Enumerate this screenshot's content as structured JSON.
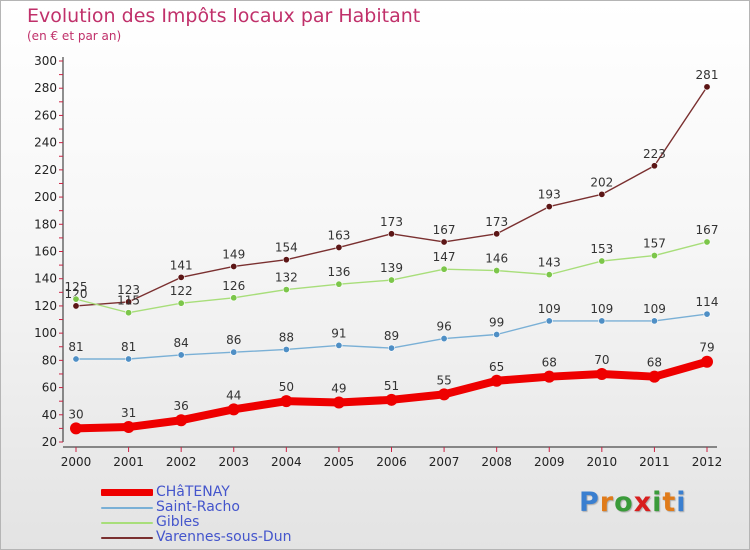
{
  "header": {
    "title": "Evolution des Impôts locaux par Habitant",
    "subtitle": "(en € et par an)"
  },
  "logo": {
    "letters": [
      "P",
      "r",
      "o",
      "x",
      "i",
      "t",
      "i"
    ],
    "colors": [
      "#3a7fd0",
      "#e07b1a",
      "#3a9b3a",
      "#d81e1e",
      "#3a9b3a",
      "#e07b1a",
      "#3a7fd0"
    ]
  },
  "chart_data": {
    "type": "line",
    "title": "Evolution des Impôts locaux par Habitant",
    "subtitle": "(en € et par an)",
    "xlabel": "",
    "ylabel": "",
    "categories": [
      "2000",
      "2001",
      "2002",
      "2003",
      "2004",
      "2005",
      "2006",
      "2007",
      "2008",
      "2009",
      "2010",
      "2011",
      "2012"
    ],
    "ylim": [
      20,
      300
    ],
    "yticks": [
      20,
      40,
      60,
      80,
      100,
      120,
      140,
      160,
      180,
      200,
      220,
      240,
      260,
      280,
      300
    ],
    "grid": false,
    "legend_position": "bottom-left",
    "series": [
      {
        "name": "CHâTENAY",
        "values": [
          30,
          31,
          36,
          44,
          50,
          49,
          51,
          55,
          65,
          68,
          70,
          68,
          79
        ],
        "color": "#ee0000",
        "marker": "#ee0000",
        "thick": true
      },
      {
        "name": "Saint-Racho",
        "values": [
          81,
          81,
          84,
          86,
          88,
          91,
          89,
          96,
          99,
          109,
          109,
          109,
          114
        ],
        "color": "#7ab0d6",
        "marker": "#4f8fc5",
        "thick": false
      },
      {
        "name": "Gibles",
        "values": [
          125,
          115,
          122,
          126,
          132,
          136,
          139,
          147,
          146,
          143,
          153,
          157,
          167
        ],
        "color": "#a8de7a",
        "marker": "#7cc64a",
        "thick": false
      },
      {
        "name": "Varennes-sous-Dun",
        "values": [
          120,
          123,
          141,
          149,
          154,
          163,
          173,
          167,
          173,
          193,
          202,
          223,
          281
        ],
        "color": "#7a3030",
        "marker": "#5c1616",
        "thick": false
      }
    ]
  }
}
